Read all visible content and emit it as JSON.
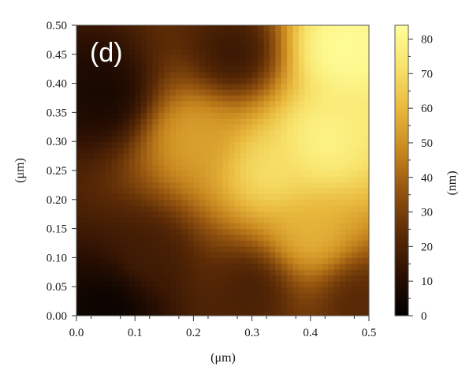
{
  "chart_data": {
    "type": "heatmap",
    "panel_label": "(d)",
    "xlabel": "(μm)",
    "ylabel": "(μm)",
    "xlim": [
      0.0,
      0.5
    ],
    "ylim": [
      0.0,
      0.5
    ],
    "x_ticks": [
      "0.0",
      "0.1",
      "0.2",
      "0.3",
      "0.4",
      "0.5"
    ],
    "y_ticks": [
      "0.00",
      "0.05",
      "0.10",
      "0.15",
      "0.20",
      "0.25",
      "0.30",
      "0.35",
      "0.40",
      "0.45",
      "0.50"
    ],
    "colorbar": {
      "label": "(nm)",
      "range": [
        0,
        84
      ],
      "ticks": [
        "0",
        "10",
        "20",
        "30",
        "40",
        "50",
        "60",
        "70",
        "80"
      ],
      "colormap": [
        "#000000",
        "#2a0f02",
        "#5a2a06",
        "#94540f",
        "#c8881f",
        "#e8b83c",
        "#f8e36c",
        "#ffff9a"
      ]
    },
    "height_features_nm": [
      {
        "x": 0.42,
        "y": 0.3,
        "height": 80
      },
      {
        "x": 0.45,
        "y": 0.46,
        "height": 84
      },
      {
        "x": 0.33,
        "y": 0.25,
        "height": 72
      },
      {
        "x": 0.2,
        "y": 0.31,
        "height": 55
      },
      {
        "x": 0.4,
        "y": 0.14,
        "height": 60
      },
      {
        "x": 0.06,
        "y": 0.02,
        "height": 2
      },
      {
        "x": 0.05,
        "y": 0.38,
        "height": 6
      },
      {
        "x": 0.27,
        "y": 0.45,
        "height": 14
      },
      {
        "x": 0.12,
        "y": 0.1,
        "height": 18
      },
      {
        "x": 0.3,
        "y": 0.05,
        "height": 18
      },
      {
        "x": 0.48,
        "y": 0.03,
        "height": 22
      }
    ]
  }
}
